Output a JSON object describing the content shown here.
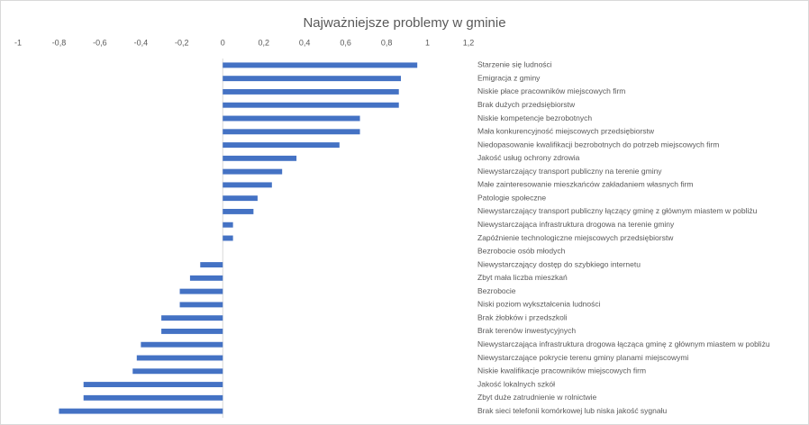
{
  "chart_data": {
    "type": "hbar",
    "title": "Najważniejsze problemy w gminie",
    "categories": [
      "Starzenie się ludności",
      "Emigracja z gminy",
      "Niskie płace pracowników miejscowych firm",
      "Brak dużych przedsiębiorstw",
      "Niskie kompetencje bezrobotnych",
      "Mała konkurencyjność miejscowych przedsiębiorstw",
      "Niedopasowanie kwalifikacji bezrobotnych do potrzeb miejscowych firm",
      "Jakość usług ochrony zdrowia",
      "Niewystarczający transport publiczny na terenie gminy",
      "Małe zainteresowanie mieszkańców zakładaniem własnych firm",
      "Patologie społeczne",
      "Niewystarczający transport publiczny łączący gminę z głównym miastem w pobliżu",
      "Niewystarczająca infrastruktura drogowa na terenie gminy",
      "Zapóźnienie technologiczne miejscowych przedsiębiorstw",
      "Bezrobocie osób młodych",
      "Niewystarczający dostęp do szybkiego internetu",
      "Zbyt mała liczba mieszkań",
      "Bezrobocie",
      "Niski poziom wykształcenia ludności",
      "Brak żłobków i przedszkoli",
      "Brak terenów inwestycyjnych",
      "Niewystarczająca infrastruktura drogowa łącząca gminę z głównym miastem w pobliżu",
      "Niewystarczające pokrycie terenu gminy planami miejscowymi",
      "Niskie kwalifikacje pracowników miejscowych firm",
      "Jakość lokalnych szkół",
      "Zbyt duże zatrudnienie w rolnictwie",
      "Brak sieci telefonii komórkowej lub niska jakość sygnału"
    ],
    "values": [
      0.95,
      0.87,
      0.86,
      0.86,
      0.67,
      0.67,
      0.57,
      0.36,
      0.29,
      0.24,
      0.17,
      0.15,
      0.05,
      0.05,
      0,
      -0.11,
      -0.16,
      -0.21,
      -0.21,
      -0.3,
      -0.3,
      -0.4,
      -0.42,
      -0.44,
      -0.68,
      -0.68,
      -0.8
    ],
    "color": "#4472c4",
    "xlim": [
      -1,
      1.2
    ],
    "xticks": [
      -1,
      {
        "value": -0.8,
        "label": "-0,8"
      },
      {
        "value": -0.6,
        "label": "-0,6"
      },
      {
        "value": -0.4,
        "label": "-0,4"
      },
      {
        "value": -0.2,
        "label": "-0,2"
      },
      0,
      {
        "value": 0.2,
        "label": "0,2"
      },
      {
        "value": 0.4,
        "label": "0,4"
      },
      {
        "value": 0.6,
        "label": "0,6"
      },
      {
        "value": 0.8,
        "label": "0,8"
      },
      1,
      {
        "value": 1.2,
        "label": "1,2"
      }
    ],
    "grid": false
  }
}
